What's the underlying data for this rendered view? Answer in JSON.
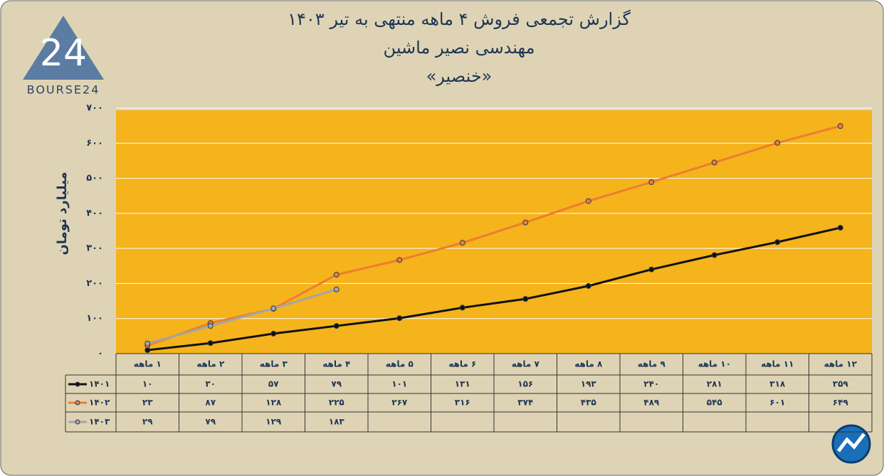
{
  "logo": {
    "text": "BOURSE24",
    "mark": "24"
  },
  "chart_data": {
    "type": "line",
    "title": "گزارش تجمعی فروش ۴ ماهه منتهی به تیر ۱۴۰۳",
    "subtitle": "مهندسی نصیر ماشین",
    "ticker": "«خنصیر»",
    "y_label": "میلیارد تومان",
    "categories": [
      "۱ ماهه",
      "۲ ماهه",
      "۳ ماهه",
      "۴ ماهه",
      "۵ ماهه",
      "۶ ماهه",
      "۷ ماهه",
      "۸ ماهه",
      "۹ ماهه",
      "۱۰ ماهه",
      "۱۱ ماهه",
      "۱۲ ماهه"
    ],
    "series": [
      {
        "name": "۱۴۰۱",
        "color": "#111111",
        "values": [
          10,
          30,
          57,
          79,
          101,
          131,
          156,
          193,
          240,
          281,
          318,
          359
        ],
        "value_labels": [
          "۱۰",
          "۳۰",
          "۵۷",
          "۷۹",
          "۱۰۱",
          "۱۳۱",
          "۱۵۶",
          "۱۹۳",
          "۲۴۰",
          "۲۸۱",
          "۳۱۸",
          "۳۵۹"
        ]
      },
      {
        "name": "۱۴۰۲",
        "color": "#ed7d31",
        "values": [
          23,
          87,
          128,
          225,
          267,
          316,
          374,
          435,
          489,
          545,
          601,
          649
        ],
        "value_labels": [
          "۲۳",
          "۸۷",
          "۱۲۸",
          "۲۲۵",
          "۲۶۷",
          "۳۱۶",
          "۳۷۴",
          "۴۳۵",
          "۴۸۹",
          "۵۴۵",
          "۶۰۱",
          "۶۴۹"
        ]
      },
      {
        "name": "۱۴۰۳",
        "color": "#a5a5a5",
        "values": [
          29,
          79,
          129,
          183,
          null,
          null,
          null,
          null,
          null,
          null,
          null,
          null
        ],
        "value_labels": [
          "۲۹",
          "۷۹",
          "۱۲۹",
          "۱۸۳",
          null,
          null,
          null,
          null,
          null,
          null,
          null,
          null
        ]
      }
    ],
    "ylim": [
      0,
      700
    ],
    "yticks": [
      {
        "value": 0,
        "label": "۰"
      },
      {
        "value": 100,
        "label": "۱۰۰"
      },
      {
        "value": 200,
        "label": "۲۰۰"
      },
      {
        "value": 300,
        "label": "۳۰۰"
      },
      {
        "value": 400,
        "label": "۴۰۰"
      },
      {
        "value": 500,
        "label": "۵۰۰"
      },
      {
        "value": 600,
        "label": "۶۰۰"
      },
      {
        "value": 700,
        "label": "۷۰۰"
      }
    ],
    "grid": true,
    "plot_color": "#f5b31c"
  }
}
